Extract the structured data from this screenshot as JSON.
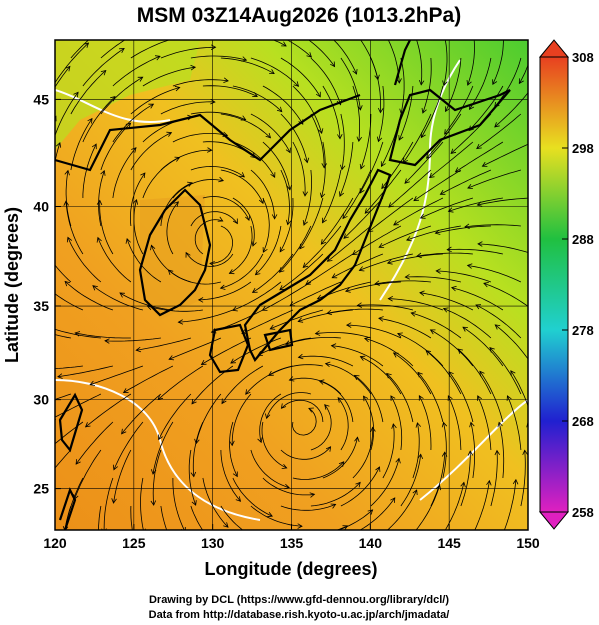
{
  "title": "MSM 03Z14Aug2026 (1013.2hPa)",
  "x_axis": {
    "label": "Longitude (degrees)",
    "xlim": [
      120,
      150
    ],
    "xticks": [
      120,
      125,
      130,
      135,
      140,
      145,
      150
    ]
  },
  "y_axis": {
    "label": "Latitude  (degrees)",
    "ylim": [
      22.6,
      47.6
    ],
    "yticks": [
      25,
      30,
      35,
      40,
      45
    ]
  },
  "colorbar": {
    "range": [
      258,
      308
    ],
    "ticks": [
      258,
      268,
      278,
      288,
      298,
      308
    ]
  },
  "credits": [
    "Drawing by DCL (https://www.gfd-dennou.org/library/dcl/)",
    "Data from http://database.rish.kyoto-u.ac.jp/arch/jmadata/"
  ]
}
